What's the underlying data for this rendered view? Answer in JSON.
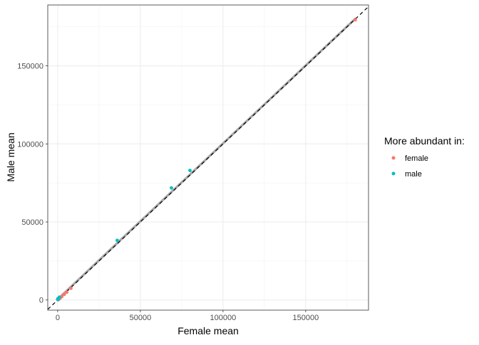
{
  "chart_data": {
    "type": "scatter",
    "xlabel": "Female mean",
    "ylabel": "Male mean",
    "xlim": [
      -6000,
      188000
    ],
    "ylim": [
      -6500,
      189000
    ],
    "x_ticks": [
      0,
      50000,
      100000,
      150000
    ],
    "y_ticks": [
      0,
      50000,
      100000,
      150000
    ],
    "x_tick_labels": [
      "0",
      "50000",
      "100000",
      "150000"
    ],
    "y_tick_labels": [
      "0",
      "50000",
      "100000",
      "150000"
    ],
    "grid": true,
    "legend": {
      "title": "More abundant in:",
      "position": "right",
      "entries": [
        {
          "label": "female",
          "color": "#F8766D"
        },
        {
          "label": "male",
          "color": "#00BFC4"
        }
      ]
    },
    "series": [
      {
        "name": "female",
        "color": "#F8766D",
        "x": [
          180000,
          8000,
          5500,
          4000,
          2500,
          1500,
          800,
          300
        ],
        "y": [
          179500,
          7500,
          5000,
          3600,
          2200,
          1200,
          600,
          150
        ]
      },
      {
        "name": "male",
        "color": "#00BFC4",
        "x": [
          80000,
          68800,
          36000,
          1000,
          400,
          100,
          50,
          10
        ],
        "y": [
          83000,
          71800,
          38200,
          1800,
          1000,
          800,
          600,
          300
        ]
      }
    ],
    "reference_line": {
      "type": "identity",
      "style": "dashed",
      "color": "#000000"
    },
    "fit_line": {
      "color": "#999999",
      "x": [
        0,
        180000
      ],
      "y": [
        500,
        180200
      ]
    }
  }
}
